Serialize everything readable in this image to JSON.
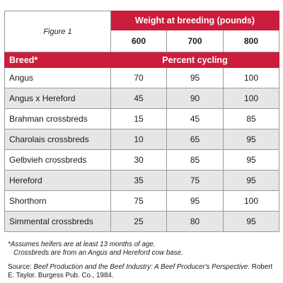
{
  "table": {
    "figure_label": "Figure 1",
    "weight_header": "Weight at breeding (pounds)",
    "weight_columns": [
      "600",
      "700",
      "800"
    ],
    "breed_header": "Breed*",
    "percent_header": "Percent cycling",
    "rows": [
      {
        "breed": "Angus",
        "values": [
          "70",
          "95",
          "100"
        ]
      },
      {
        "breed": "Angus x Hereford",
        "values": [
          "45",
          "90",
          "100"
        ]
      },
      {
        "breed": "Brahman crossbreds",
        "values": [
          "15",
          "45",
          "85"
        ]
      },
      {
        "breed": "Charolais crossbreds",
        "values": [
          "10",
          "65",
          "95"
        ]
      },
      {
        "breed": "Gelbvieh crossbreds",
        "values": [
          "30",
          "85",
          "95"
        ]
      },
      {
        "breed": "Hereford",
        "values": [
          "35",
          "75",
          "95"
        ]
      },
      {
        "breed": "Shorthorn",
        "values": [
          "75",
          "95",
          "100"
        ]
      },
      {
        "breed": "Simmental crossbreds",
        "values": [
          "25",
          "80",
          "95"
        ]
      }
    ]
  },
  "notes": {
    "footnote_line1": "*Assumes heifers are at least 13 months of age.",
    "footnote_line2": "Crossbreds are from an Angus and Hereford cow base.",
    "source_prefix": "Source: ",
    "source_title": "Beef Production and the Beef Industry: A Beef Producer's Perspective",
    "source_rest": ". Robert E. Taylor. Burgess Pub. Co., 1984."
  },
  "colors": {
    "header_red": "#cc1e3c",
    "row_gray": "#e6e6e6",
    "border_gray": "#9a9a9a"
  }
}
